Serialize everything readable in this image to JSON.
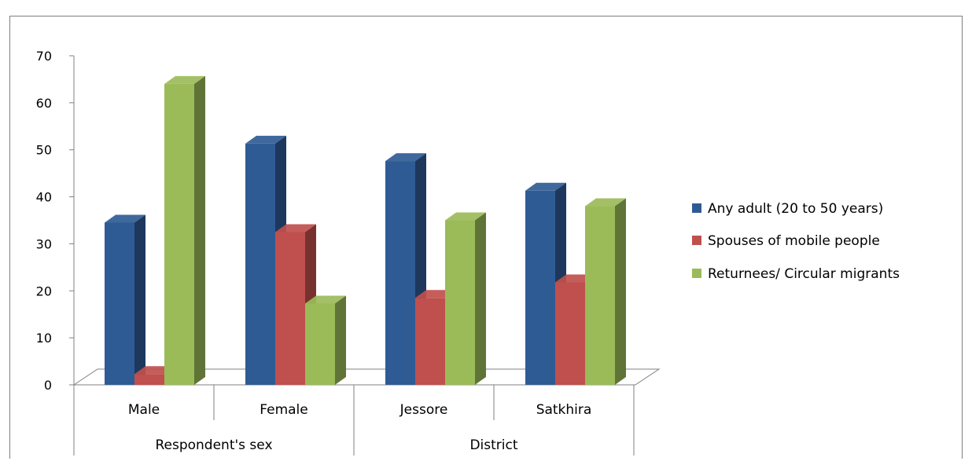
{
  "chart_data": {
    "type": "bar",
    "title": "",
    "categories": [
      "Male",
      "Female",
      "Jessore",
      "Satkhira"
    ],
    "groups": [
      {
        "label": "Respondent's sex",
        "categories": [
          "Male",
          "Female"
        ]
      },
      {
        "label": "District",
        "categories": [
          "Jessore",
          "Satkhira"
        ]
      }
    ],
    "series": [
      {
        "name": "Any adult (20 to 50 years)",
        "color": "#2f5b95",
        "values": [
          34.5,
          51.3,
          47.6,
          41.3
        ]
      },
      {
        "name": "Spouses of mobile people",
        "color": "#c0504d",
        "values": [
          2.3,
          32.5,
          18.5,
          21.8
        ]
      },
      {
        "name": "Returnees/ Circular migrants",
        "color": "#9bbb59",
        "values": [
          64.0,
          17.3,
          35.0,
          38.0
        ]
      }
    ],
    "ylim": [
      0,
      70
    ],
    "yticks": [
      0,
      10,
      20,
      30,
      40,
      50,
      60,
      70
    ],
    "legend_position": "right",
    "grid": false,
    "style": "3d-clustered-column"
  }
}
